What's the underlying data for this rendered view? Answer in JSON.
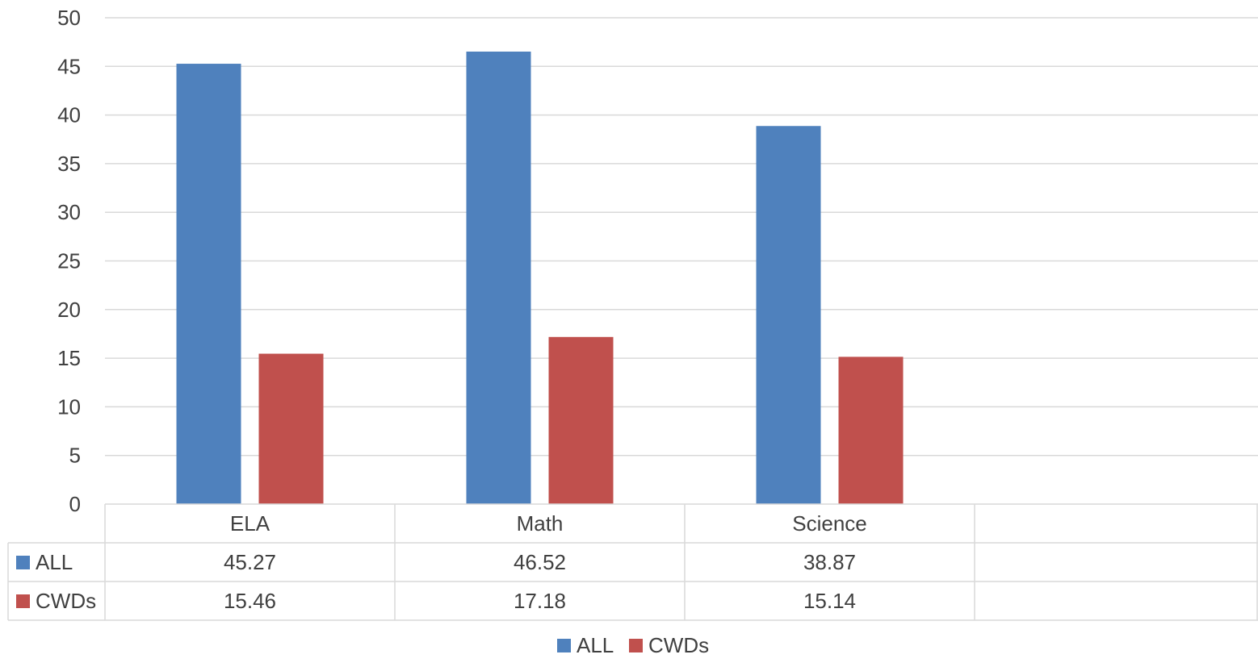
{
  "chart_data": {
    "type": "bar",
    "title": "",
    "xlabel": "",
    "ylabel": "",
    "categories": [
      "ELA",
      "Math",
      "Science"
    ],
    "series": [
      {
        "name": "ALL",
        "values": [
          45.27,
          46.52,
          38.87
        ],
        "color": "#4F81BD"
      },
      {
        "name": "CWDs",
        "values": [
          15.46,
          17.18,
          15.14
        ],
        "color": "#C0504D"
      }
    ],
    "ylim": [
      0,
      50
    ],
    "y_ticks": [
      0,
      5,
      10,
      15,
      20,
      25,
      30,
      35,
      40,
      45,
      50
    ],
    "value_labels": [
      [
        "45.27",
        "46.52",
        "38.87"
      ],
      [
        "15.46",
        "17.18",
        "15.14"
      ]
    ],
    "grid": true,
    "data_table": true,
    "legend": "bottom-center"
  }
}
